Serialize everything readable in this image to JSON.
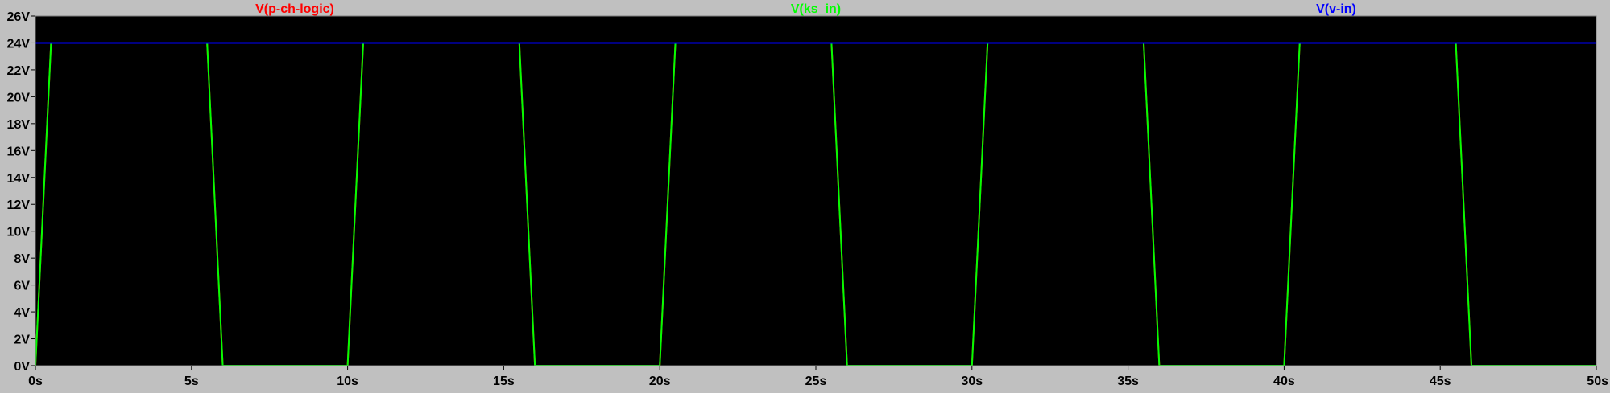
{
  "chart_data": {
    "type": "line",
    "xlim": [
      0,
      50
    ],
    "ylim": [
      0,
      26
    ],
    "x_unit": "s",
    "y_unit": "V",
    "x_ticks": [
      0,
      5,
      10,
      15,
      20,
      25,
      30,
      35,
      40,
      45,
      50
    ],
    "x_tick_labels": [
      "0s",
      "5s",
      "10s",
      "15s",
      "20s",
      "25s",
      "30s",
      "35s",
      "40s",
      "45s",
      "50s"
    ],
    "y_ticks": [
      0,
      2,
      4,
      6,
      8,
      10,
      12,
      14,
      16,
      18,
      20,
      22,
      24,
      26
    ],
    "y_tick_labels": [
      "0V",
      "2V",
      "4V",
      "6V",
      "8V",
      "10V",
      "12V",
      "14V",
      "16V",
      "18V",
      "20V",
      "22V",
      "24V",
      "26V"
    ],
    "background": "#000000",
    "frame_color": "#c0c0c0",
    "grid": false,
    "legend_position": "top",
    "series": [
      {
        "name": "V(p-ch-logic)",
        "color": "#ff0000",
        "x": [
          0,
          0.5,
          5.5,
          6,
          10,
          10.5,
          15.5,
          16,
          20,
          20.5,
          25.5,
          26,
          30,
          30.5,
          35.5,
          36,
          40,
          40.5,
          45.5,
          46,
          50
        ],
        "y": [
          0,
          24,
          24,
          0,
          0,
          24,
          24,
          0,
          0,
          24,
          24,
          0,
          0,
          24,
          24,
          0,
          0,
          24,
          24,
          0,
          0
        ]
      },
      {
        "name": "V(ks_in)",
        "color": "#00ff00",
        "x": [
          0,
          0.5,
          5.5,
          6,
          10,
          10.5,
          15.5,
          16,
          20,
          20.5,
          25.5,
          26,
          30,
          30.5,
          35.5,
          36,
          40,
          40.5,
          45.5,
          46,
          50
        ],
        "y": [
          0,
          24,
          24,
          0,
          0,
          24,
          24,
          0,
          0,
          24,
          24,
          0,
          0,
          24,
          24,
          0,
          0,
          24,
          24,
          0,
          0
        ]
      },
      {
        "name": "V(v-in)",
        "color": "#0000ff",
        "x": [
          0,
          50
        ],
        "y": [
          24,
          24
        ]
      }
    ]
  }
}
